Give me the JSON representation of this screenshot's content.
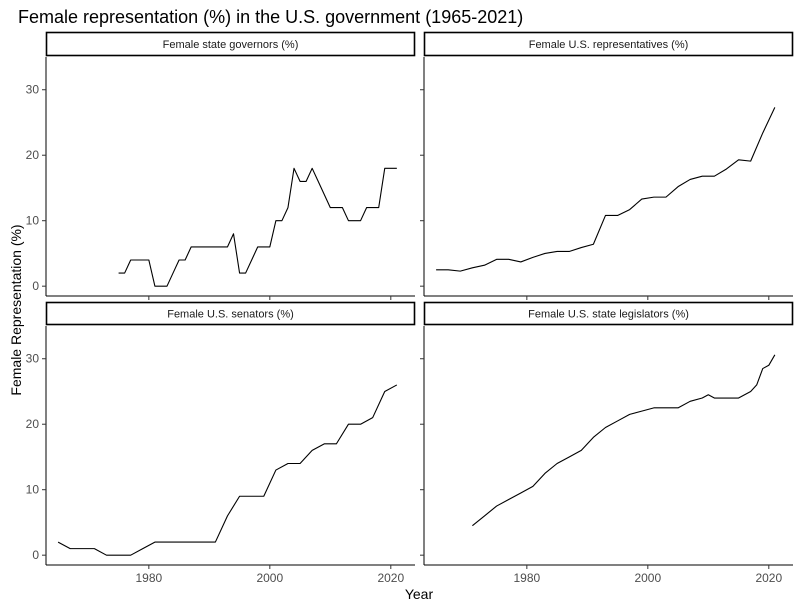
{
  "chart_data": {
    "type": "line",
    "title": "Female representation (%) in the U.S. government (1965-2021)",
    "xlabel": "Year",
    "ylabel": "Female Representation (%)",
    "xlim": [
      1963,
      2024
    ],
    "ylim": [
      -1.5,
      35
    ],
    "x_ticks": [
      1980,
      2000,
      2020
    ],
    "y_ticks": [
      0,
      10,
      20,
      30
    ],
    "grid": false,
    "facets": [
      {
        "name": "Female state governors (%)",
        "x": [
          1975,
          1976,
          1977,
          1978,
          1979,
          1980,
          1981,
          1982,
          1983,
          1984,
          1985,
          1986,
          1987,
          1988,
          1989,
          1990,
          1991,
          1992,
          1993,
          1994,
          1995,
          1996,
          1997,
          1998,
          1999,
          2000,
          2001,
          2002,
          2003,
          2004,
          2005,
          2006,
          2007,
          2008,
          2009,
          2010,
          2011,
          2012,
          2013,
          2014,
          2015,
          2016,
          2017,
          2018,
          2019,
          2020,
          2021
        ],
        "y": [
          2,
          2,
          4,
          4,
          4,
          4,
          0,
          0,
          0,
          2,
          4,
          4,
          6,
          6,
          6,
          6,
          6,
          6,
          6,
          8,
          2,
          2,
          4,
          6,
          6,
          6,
          10,
          10,
          12,
          18,
          16,
          16,
          18,
          16,
          14,
          12,
          12,
          12,
          10,
          10,
          10,
          12,
          12,
          12,
          18,
          18,
          18
        ]
      },
      {
        "name": "Female U.S. representatives (%)",
        "x": [
          1965,
          1967,
          1969,
          1971,
          1973,
          1975,
          1977,
          1979,
          1981,
          1983,
          1985,
          1987,
          1989,
          1991,
          1993,
          1995,
          1997,
          1999,
          2001,
          2003,
          2005,
          2007,
          2009,
          2011,
          2013,
          2015,
          2017,
          2019,
          2021
        ],
        "y": [
          2.5,
          2.5,
          2.3,
          2.8,
          3.2,
          4.1,
          4.1,
          3.7,
          4.4,
          5.0,
          5.3,
          5.3,
          5.9,
          6.4,
          10.8,
          10.8,
          11.7,
          13.3,
          13.6,
          13.6,
          15.2,
          16.3,
          16.8,
          16.8,
          17.9,
          19.3,
          19.1,
          23.4,
          27.3
        ]
      },
      {
        "name": "Female U.S. senators (%)",
        "x": [
          1965,
          1967,
          1971,
          1973,
          1975,
          1977,
          1979,
          1981,
          1983,
          1985,
          1987,
          1989,
          1991,
          1993,
          1995,
          1997,
          1999,
          2001,
          2003,
          2005,
          2007,
          2009,
          2011,
          2013,
          2015,
          2017,
          2019,
          2021
        ],
        "y": [
          2,
          1,
          1,
          0,
          0,
          0,
          1,
          2,
          2,
          2,
          2,
          2,
          2,
          6,
          9,
          9,
          9,
          13,
          14,
          14,
          16,
          17,
          17,
          20,
          20,
          21,
          25,
          26
        ]
      },
      {
        "name": "Female U.S. state legislators (%)",
        "x": [
          1971,
          1973,
          1975,
          1977,
          1979,
          1981,
          1983,
          1985,
          1987,
          1989,
          1991,
          1993,
          1995,
          1997,
          1999,
          2001,
          2003,
          2005,
          2007,
          2009,
          2010,
          2011,
          2013,
          2015,
          2017,
          2018,
          2019,
          2020,
          2021
        ],
        "y": [
          4.5,
          6.0,
          7.5,
          8.5,
          9.5,
          10.5,
          12.5,
          14,
          15,
          16,
          18,
          19.5,
          20.5,
          21.5,
          22,
          22.5,
          22.5,
          22.5,
          23.5,
          24,
          24.5,
          24,
          24,
          24,
          25,
          26,
          28.5,
          29,
          30.6
        ]
      }
    ]
  }
}
